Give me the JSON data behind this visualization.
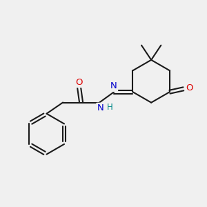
{
  "bg_color": "#f0f0f0",
  "bond_color": "#1a1a1a",
  "bond_width": 1.5,
  "atom_colors": {
    "O": "#dd0000",
    "N": "#0000cc",
    "H": "#008888",
    "C": "#1a1a1a"
  },
  "dbo": 0.09
}
